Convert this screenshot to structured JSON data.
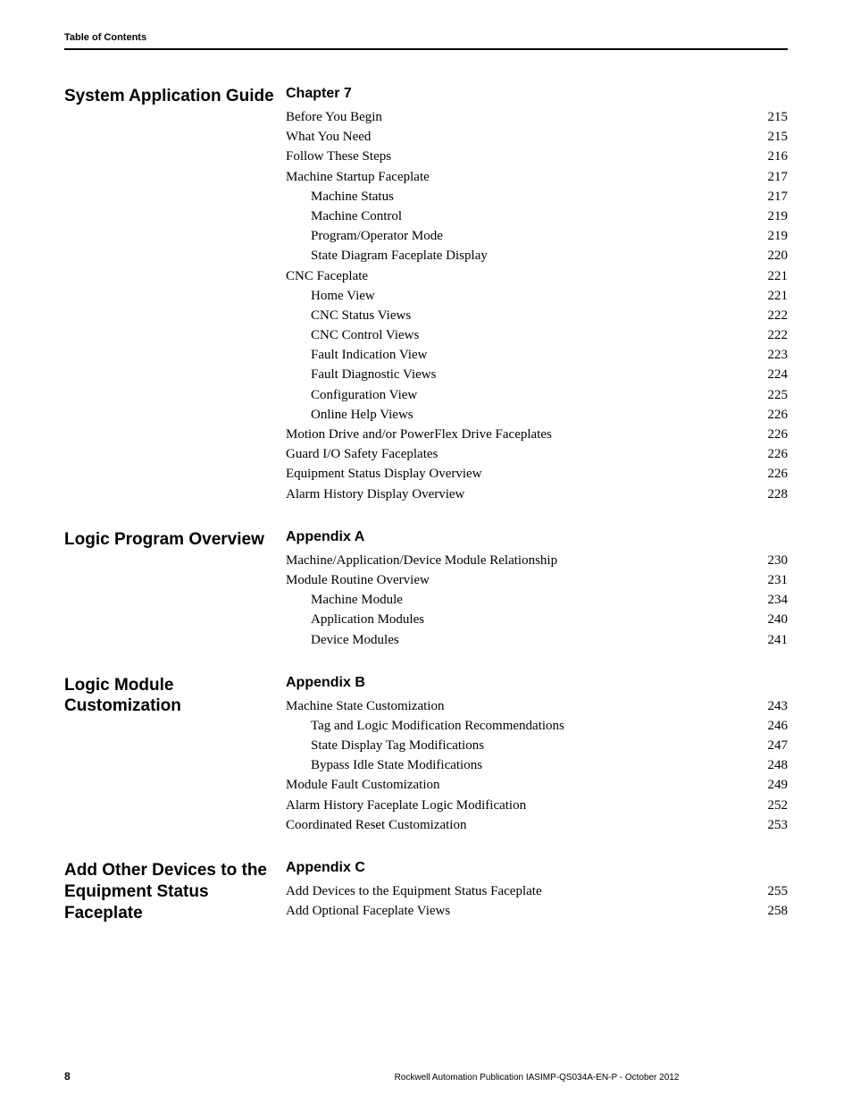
{
  "running_head": "Table of Contents",
  "sections": [
    {
      "heading": "Chapter 7",
      "title": "System Application Guide",
      "entries": [
        {
          "label": "Before You Begin",
          "page": "215",
          "indent": 0
        },
        {
          "label": "What You Need",
          "page": "215",
          "indent": 0
        },
        {
          "label": "Follow These Steps",
          "page": "216",
          "indent": 0
        },
        {
          "label": "Machine Startup Faceplate",
          "page": "217",
          "indent": 0
        },
        {
          "label": "Machine Status",
          "page": "217",
          "indent": 1
        },
        {
          "label": "Machine Control",
          "page": "219",
          "indent": 1
        },
        {
          "label": "Program/Operator Mode",
          "page": "219",
          "indent": 1
        },
        {
          "label": "State Diagram Faceplate Display",
          "page": "220",
          "indent": 1
        },
        {
          "label": "CNC Faceplate",
          "page": "221",
          "indent": 0
        },
        {
          "label": "Home View",
          "page": "221",
          "indent": 1
        },
        {
          "label": "CNC Status Views",
          "page": "222",
          "indent": 1
        },
        {
          "label": "CNC Control Views",
          "page": "222",
          "indent": 1
        },
        {
          "label": "Fault Indication View",
          "page": "223",
          "indent": 1
        },
        {
          "label": "Fault Diagnostic Views",
          "page": "224",
          "indent": 1
        },
        {
          "label": "Configuration View",
          "page": "225",
          "indent": 1
        },
        {
          "label": "Online Help Views",
          "page": "226",
          "indent": 1
        },
        {
          "label": "Motion Drive and/or PowerFlex Drive Faceplates",
          "page": "226",
          "indent": 0
        },
        {
          "label": "Guard I/O Safety Faceplates",
          "page": "226",
          "indent": 0
        },
        {
          "label": "Equipment Status Display Overview",
          "page": "226",
          "indent": 0
        },
        {
          "label": "Alarm History Display Overview",
          "page": "228",
          "indent": 0
        }
      ]
    },
    {
      "heading": "Appendix A",
      "title": "Logic Program Overview",
      "entries": [
        {
          "label": "Machine/Application/Device Module Relationship",
          "page": "230",
          "indent": 0
        },
        {
          "label": "Module Routine Overview",
          "page": "231",
          "indent": 0
        },
        {
          "label": "Machine Module",
          "page": "234",
          "indent": 1
        },
        {
          "label": "Application Modules",
          "page": "240",
          "indent": 1
        },
        {
          "label": "Device Modules",
          "page": "241",
          "indent": 1
        }
      ]
    },
    {
      "heading": "Appendix B",
      "title": "Logic Module Customization",
      "entries": [
        {
          "label": "Machine State Customization",
          "page": "243",
          "indent": 0
        },
        {
          "label": "Tag and Logic Modification Recommendations",
          "page": "246",
          "indent": 1
        },
        {
          "label": "State Display Tag Modifications",
          "page": "247",
          "indent": 1
        },
        {
          "label": "Bypass Idle State Modifications",
          "page": "248",
          "indent": 1
        },
        {
          "label": "Module Fault Customization",
          "page": "249",
          "indent": 0
        },
        {
          "label": "Alarm History Faceplate Logic Modification",
          "page": "252",
          "indent": 0
        },
        {
          "label": "Coordinated Reset Customization",
          "page": "253",
          "indent": 0
        }
      ]
    },
    {
      "heading": "Appendix C",
      "title": "Add Other Devices to the Equipment Status Faceplate",
      "entries": [
        {
          "label": "Add Devices to the Equipment Status Faceplate",
          "page": "255",
          "indent": 0
        },
        {
          "label": "Add Optional Faceplate Views",
          "page": "258",
          "indent": 0
        }
      ]
    }
  ],
  "footer": {
    "pagenum": "8",
    "publication": "Rockwell Automation Publication IASIMP-QS034A-EN-P - October 2012"
  }
}
